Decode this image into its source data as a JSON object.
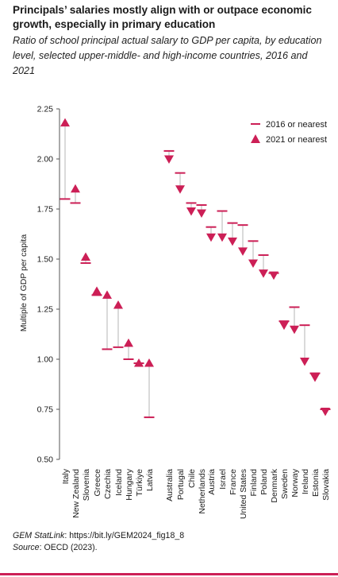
{
  "title": "Principals’ salaries mostly align with or outpace economic growth, especially in primary education",
  "subtitle": "Ratio of school principal actual salary to GDP per capita, by education level, selected upper-middle- and high-income countries, 2016 and 2021",
  "footer": {
    "statlink_label": "GEM StatLink",
    "statlink_url": ": https://bit.ly/GEM2024_fig18_8",
    "source_label": "Source",
    "source_text": ": OECD (2023)."
  },
  "colors": {
    "marker": "#cc1f56",
    "connector": "#b5b5b5",
    "axis": "#555555"
  },
  "chart_data": {
    "type": "scatter",
    "ylabel": "Multiple of GDP per capita",
    "ylim": [
      0.5,
      2.25
    ],
    "yticks": [
      "0.50",
      "0.75",
      "1.00",
      "1.25",
      "1.50",
      "1.75",
      "2.00",
      "2.25"
    ],
    "grid": false,
    "legend_position": "top-right",
    "series": [
      {
        "name": "2016 or nearest",
        "marker": "dash"
      },
      {
        "name": "2021 or nearest",
        "marker": "triangle"
      }
    ],
    "groups": [
      {
        "countries": [
          "Italy",
          "New Zealand",
          "Slovenia",
          "Greece",
          "Czechia",
          "Iceland",
          "Hungary",
          "Türkiye",
          "Latvia"
        ],
        "values_2016": [
          1.8,
          1.78,
          1.48,
          1.32,
          1.05,
          1.06,
          1.0,
          0.98,
          0.71
        ],
        "values_2021": [
          2.18,
          1.85,
          1.51,
          1.34,
          1.32,
          1.27,
          1.08,
          0.98,
          0.98
        ]
      },
      {
        "countries": [
          "Australia",
          "Portugal",
          "Chile",
          "Netherlands",
          "Austria",
          "Israel",
          "France",
          "United States",
          "Finland",
          "Poland",
          "Denmark",
          "Sweden",
          "Norway",
          "Ireland",
          "Estonia",
          "Slovakia"
        ],
        "values_2016": [
          2.04,
          1.93,
          1.78,
          1.77,
          1.66,
          1.74,
          1.68,
          1.67,
          1.59,
          1.52,
          1.43,
          1.19,
          1.26,
          1.17,
          0.93,
          0.75
        ],
        "values_2021": [
          2.0,
          1.85,
          1.74,
          1.73,
          1.61,
          1.61,
          1.59,
          1.54,
          1.48,
          1.43,
          1.42,
          1.17,
          1.15,
          0.99,
          0.91,
          0.74
        ]
      }
    ]
  }
}
